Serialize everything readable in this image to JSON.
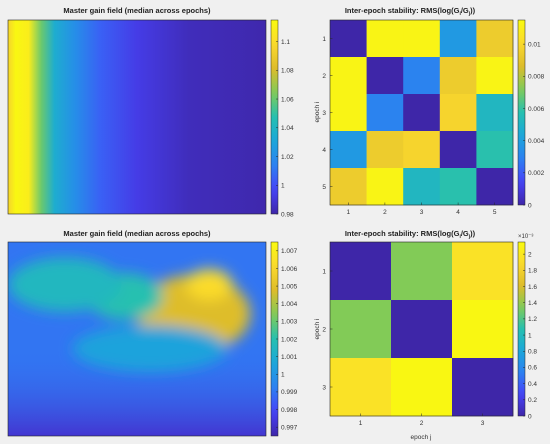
{
  "chart_data": [
    {
      "type": "heatmap",
      "title": "Master gain field (median across epochs)",
      "colorbar": {
        "min": 0.98,
        "max": 1.115,
        "ticks": [
          0.98,
          1,
          1.02,
          1.04,
          1.06,
          1.08,
          1.1
        ],
        "tick_labels": [
          "0.98",
          "1",
          "1.02",
          "1.04",
          "1.06",
          "1.08",
          "1.1"
        ]
      },
      "colormap": [
        "#3e26a8",
        "#4743f8",
        "#2d80f1",
        "#1ba7da",
        "#26c0b0",
        "#80cb58",
        "#ddbc2b",
        "#fbd92e",
        "#f9fb0e"
      ],
      "field_profile": {
        "description_axis": "left-to-right gain profile",
        "x_frac": [
          0.0,
          0.03,
          0.08,
          0.13,
          0.18,
          0.26,
          0.36,
          0.5,
          0.7,
          1.0
        ],
        "value": [
          1.095,
          1.113,
          1.108,
          1.06,
          1.035,
          1.02,
          1.005,
          0.993,
          0.984,
          0.981
        ]
      },
      "grid": false
    },
    {
      "type": "heatmap",
      "title": "Inter-epoch stability: RMS(log(G",
      "title_sub_i": "i",
      "title_slash": "/G",
      "title_sub_j": "j",
      "title_end": "))",
      "ylabel": "epoch i",
      "xlabel": "",
      "x_ticks": [
        "1",
        "2",
        "3",
        "4",
        "5"
      ],
      "y_ticks": [
        "1",
        "2",
        "3",
        "4",
        "5"
      ],
      "colorbar": {
        "min": 0,
        "max": 0.0115,
        "ticks": [
          0,
          0.002,
          0.004,
          0.006,
          0.008,
          0.01
        ],
        "tick_labels": [
          "0",
          "0.002",
          "0.004",
          "0.006",
          "0.008",
          "0.01"
        ]
      },
      "matrix": [
        [
          0.0,
          0.0112,
          0.0112,
          0.0038,
          0.0094
        ],
        [
          0.0112,
          0.0,
          0.003,
          0.0094,
          0.0112
        ],
        [
          0.0112,
          0.003,
          0.0,
          0.0098,
          0.0052
        ],
        [
          0.0038,
          0.0094,
          0.0098,
          0.0,
          0.0058
        ],
        [
          0.0094,
          0.0112,
          0.0052,
          0.0058,
          0.0
        ]
      ]
    },
    {
      "type": "heatmap",
      "title": "Master gain field (median across epochs)",
      "colorbar": {
        "min": 0.9965,
        "max": 1.0075,
        "ticks": [
          0.997,
          0.998,
          0.999,
          1,
          1.001,
          1.002,
          1.003,
          1.004,
          1.005,
          1.006,
          1.007
        ],
        "tick_labels": [
          "0.997",
          "0.998",
          "0.999",
          "1",
          "1.001",
          "1.002",
          "1.003",
          "1.004",
          "1.005",
          "1.006",
          "1.007"
        ]
      },
      "blobs": [
        {
          "cx": 0.72,
          "cy": 0.37,
          "rx": 0.22,
          "ry": 0.2,
          "value": 1.0048
        },
        {
          "cx": 0.78,
          "cy": 0.22,
          "rx": 0.09,
          "ry": 0.08,
          "value": 1.0062
        },
        {
          "cx": 0.45,
          "cy": 0.28,
          "rx": 0.15,
          "ry": 0.12,
          "value": 1.002
        },
        {
          "cx": 0.22,
          "cy": 0.22,
          "rx": 0.22,
          "ry": 0.14,
          "value": 1.0015
        },
        {
          "cx": 0.55,
          "cy": 0.55,
          "rx": 0.3,
          "ry": 0.12,
          "value": 1.0005
        }
      ],
      "base_value": 0.999,
      "bottom_value": 0.9972,
      "grid": false
    },
    {
      "type": "heatmap",
      "title": "Inter-epoch stability: RMS(log(G",
      "title_sub_i": "i",
      "title_slash": "/G",
      "title_sub_j": "j",
      "title_end": "))",
      "ylabel": "epoch i",
      "xlabel": "epoch j",
      "x_ticks": [
        "1",
        "2",
        "3"
      ],
      "y_ticks": [
        "1",
        "2",
        "3"
      ],
      "colorbar": {
        "min": 0,
        "max": 2.15,
        "exponent": "×10⁻³",
        "ticks": [
          0,
          0.2,
          0.4,
          0.6,
          0.8,
          1,
          1.2,
          1.4,
          1.6,
          1.8,
          2
        ],
        "tick_labels": [
          "0",
          "0.2",
          "0.4",
          "0.6",
          "0.8",
          "1",
          "1.2",
          "1.4",
          "1.6",
          "1.8",
          "2"
        ]
      },
      "matrix": [
        [
          0.0,
          1.35,
          1.95
        ],
        [
          1.35,
          0.0,
          2.12
        ],
        [
          1.95,
          2.12,
          0.0
        ]
      ]
    }
  ]
}
